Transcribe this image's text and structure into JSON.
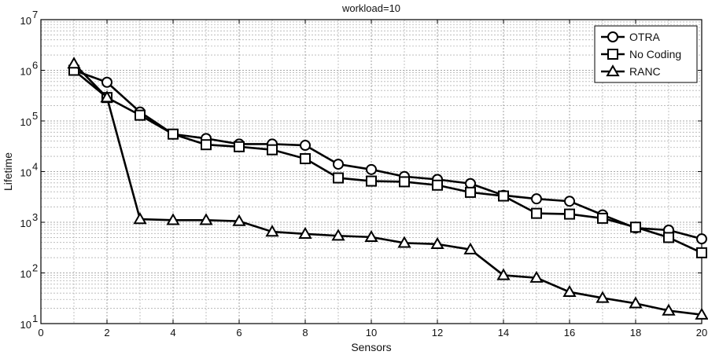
{
  "chart_data": {
    "type": "line",
    "title": "workload=10",
    "xlabel": "Sensors",
    "ylabel": "Lifetime",
    "x_scale": "linear",
    "y_scale": "log",
    "xlim": [
      0,
      20
    ],
    "ylim": [
      10,
      10000000
    ],
    "xticks": [
      0,
      2,
      4,
      6,
      8,
      10,
      12,
      14,
      16,
      18,
      20
    ],
    "xtick_labels": [
      "0",
      "2",
      "4",
      "6",
      "8",
      "10",
      "12",
      "14",
      "16",
      "18",
      "20"
    ],
    "yticks": [
      10,
      100,
      1000,
      10000,
      100000,
      1000000,
      10000000
    ],
    "ytick_labels": [
      {
        "base": "10",
        "exp": "1"
      },
      {
        "base": "10",
        "exp": "2"
      },
      {
        "base": "10",
        "exp": "3"
      },
      {
        "base": "10",
        "exp": "4"
      },
      {
        "base": "10",
        "exp": "5"
      },
      {
        "base": "10",
        "exp": "6"
      },
      {
        "base": "10",
        "exp": "7"
      }
    ],
    "grid": true,
    "legend_position": "top-right",
    "x": [
      1,
      2,
      3,
      4,
      5,
      6,
      7,
      8,
      9,
      10,
      11,
      12,
      13,
      14,
      15,
      16,
      17,
      18,
      19,
      20
    ],
    "series": [
      {
        "name": "OTRA",
        "marker": "circle",
        "values": [
          1000000,
          580000,
          150000,
          55000,
          45000,
          35000,
          35000,
          33000,
          14000,
          11000,
          8000,
          7000,
          5800,
          3400,
          2900,
          2600,
          1400,
          770,
          700,
          470
        ]
      },
      {
        "name": "No Coding",
        "marker": "square",
        "values": [
          1000000,
          290000,
          130000,
          55000,
          34000,
          31000,
          27000,
          18000,
          7500,
          6500,
          6300,
          5400,
          3900,
          3300,
          1500,
          1450,
          1200,
          800,
          500,
          250
        ]
      },
      {
        "name": "RANC",
        "marker": "triangle",
        "values": [
          1350000,
          290000,
          1150,
          1100,
          1100,
          1050,
          650,
          590,
          540,
          510,
          390,
          370,
          290,
          90,
          80,
          42,
          32,
          25,
          18,
          15
        ]
      }
    ]
  }
}
